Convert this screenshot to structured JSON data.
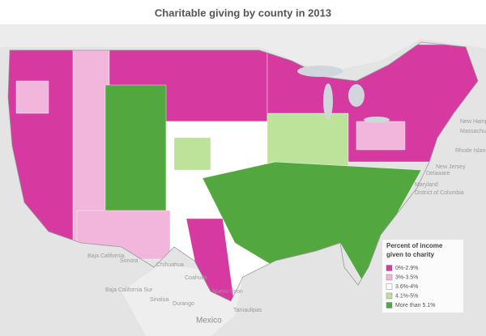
{
  "title": "Charitable giving by county in 2013",
  "legend": {
    "title_lines": [
      "Percent of income",
      "given to charity"
    ],
    "items": [
      {
        "label": "0%-2.9%",
        "color": "#d6399f"
      },
      {
        "label": "3%-3.5%",
        "color": "#f2b6dd"
      },
      {
        "label": "3.6%-4%",
        "color": "#ffffff"
      },
      {
        "label": "4.1%-5%",
        "color": "#bde39a"
      },
      {
        "label": "More than 5.1%",
        "color": "#52a83e"
      }
    ]
  },
  "places": [
    "New Hamp",
    "Massachu",
    "Rhode Island",
    "New Jersey",
    "Delaware",
    "Maryland",
    "District of Columbia",
    "Baja California",
    "Sonora",
    "Chihuahua",
    "Coahuila",
    "Nuevo Leon",
    "Tamaulipas",
    "Baja California Sur",
    "Sinaloa",
    "Durango",
    "Mexico"
  ]
}
